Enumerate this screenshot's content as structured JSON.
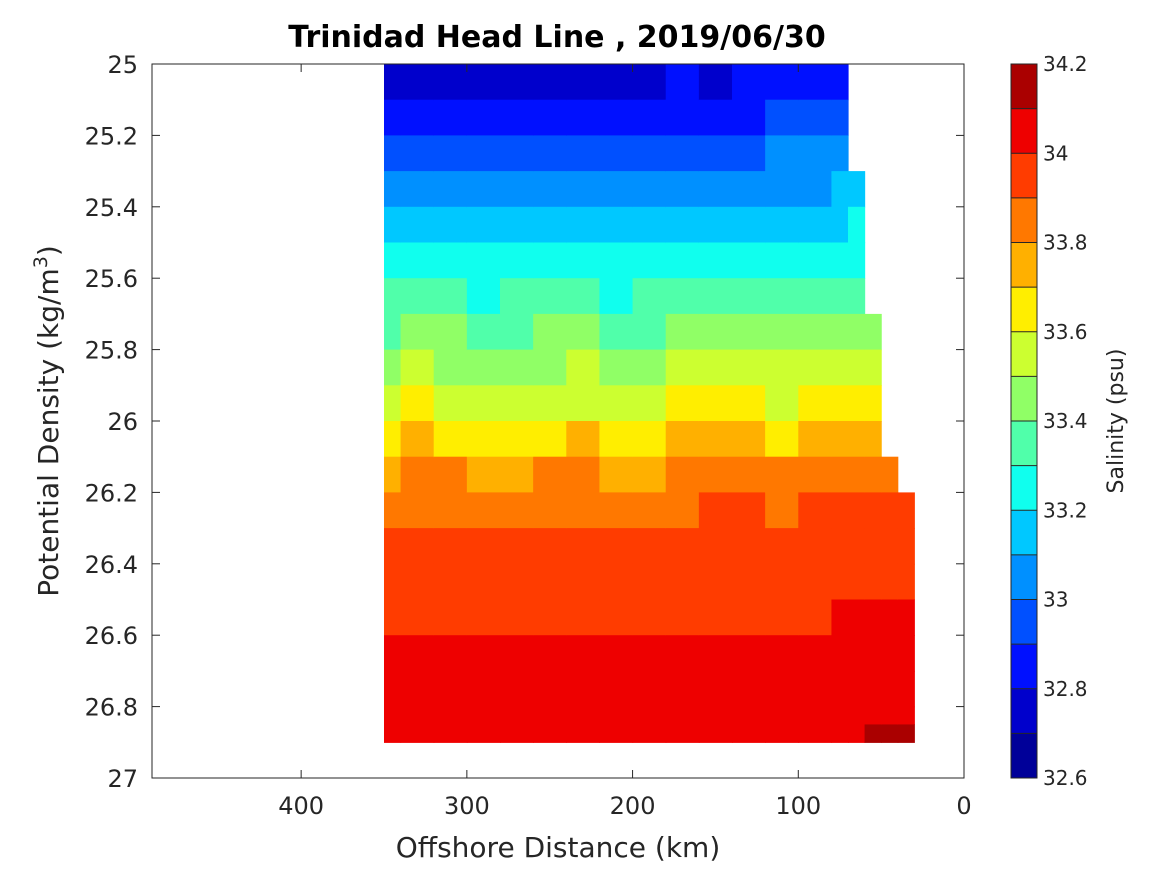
{
  "chart_data": {
    "type": "contour",
    "title": "Trinidad Head Line , 2019/06/30",
    "xlabel": "Offshore Distance (km)",
    "ylabel": "Potential Density (kg/m",
    "ylabel_sup": "3",
    "ylabel_end": ")",
    "xlim": [
      490,
      0
    ],
    "ylim": [
      25,
      27
    ],
    "x_reversed": true,
    "y_reversed": true,
    "x_ticks": [
      400,
      300,
      200,
      100,
      0
    ],
    "y_ticks": [
      25,
      25.2,
      25.4,
      25.6,
      25.8,
      26,
      26.2,
      26.4,
      26.6,
      26.8,
      27
    ],
    "colorbar": {
      "label": "Salinity (psu)",
      "range": [
        32.6,
        34.2
      ],
      "ticks": [
        32.6,
        32.8,
        33,
        33.2,
        33.4,
        33.6,
        33.8,
        34,
        34.2
      ],
      "levels": [
        {
          "min": 32.6,
          "max": 32.7,
          "color": "#000099"
        },
        {
          "min": 32.7,
          "max": 32.8,
          "color": "#0000cc"
        },
        {
          "min": 32.8,
          "max": 32.9,
          "color": "#0010ff"
        },
        {
          "min": 32.9,
          "max": 33.0,
          "color": "#0050ff"
        },
        {
          "min": 33.0,
          "max": 33.1,
          "color": "#0090ff"
        },
        {
          "min": 33.1,
          "max": 33.2,
          "color": "#00c8ff"
        },
        {
          "min": 33.2,
          "max": 33.3,
          "color": "#10ffee"
        },
        {
          "min": 33.3,
          "max": 33.4,
          "color": "#50ffaa"
        },
        {
          "min": 33.4,
          "max": 33.5,
          "color": "#90ff66"
        },
        {
          "min": 33.5,
          "max": 33.6,
          "color": "#ccff30"
        },
        {
          "min": 33.6,
          "max": 33.7,
          "color": "#ffee00"
        },
        {
          "min": 33.7,
          "max": 33.8,
          "color": "#ffb000"
        },
        {
          "min": 33.8,
          "max": 33.9,
          "color": "#ff7800"
        },
        {
          "min": 33.9,
          "max": 34.0,
          "color": "#ff3c00"
        },
        {
          "min": 34.0,
          "max": 34.1,
          "color": "#ee0000"
        },
        {
          "min": 34.1,
          "max": 34.2,
          "color": "#aa0000"
        }
      ]
    },
    "sections": [
      {
        "x": 350,
        "values": [
          32.73,
          32.79,
          32.87,
          32.97,
          33.07,
          33.16,
          33.26,
          33.34,
          33.42,
          33.52,
          33.63,
          33.74,
          33.84,
          33.92,
          33.96,
          33.98,
          34.0,
          34.02,
          34.04,
          34.07,
          34.08
        ]
      },
      {
        "x": 340,
        "values": [
          32.74,
          32.82,
          32.91,
          33.02,
          33.12,
          33.21,
          33.29,
          33.37,
          33.45,
          33.54,
          33.64,
          33.75,
          33.86,
          33.93,
          33.96,
          33.98,
          34.0,
          34.02,
          34.04,
          34.08,
          34.09
        ]
      },
      {
        "x": 320,
        "values": [
          32.76,
          32.85,
          32.94,
          33.04,
          33.13,
          33.22,
          33.3,
          33.38,
          33.47,
          33.56,
          33.66,
          33.76,
          33.87,
          33.93,
          33.96,
          33.98,
          34.0,
          34.02,
          34.05,
          34.09,
          34.09
        ]
      },
      {
        "x": 300,
        "values": [
          32.7,
          32.78,
          32.87,
          32.97,
          33.06,
          33.15,
          33.24,
          33.33,
          33.43,
          33.53,
          33.63,
          33.74,
          33.85,
          33.93,
          33.96,
          33.98,
          34.0,
          34.02,
          34.05,
          34.08,
          34.09
        ]
      },
      {
        "x": 280,
        "values": [
          32.74,
          32.81,
          32.9,
          32.99,
          33.08,
          33.17,
          33.26,
          33.35,
          33.44,
          33.54,
          33.64,
          33.75,
          33.85,
          33.93,
          33.96,
          33.98,
          34.0,
          34.02,
          34.05,
          34.08,
          34.09
        ]
      },
      {
        "x": 260,
        "values": [
          32.71,
          32.79,
          32.88,
          32.98,
          33.07,
          33.16,
          33.25,
          33.34,
          33.44,
          33.54,
          33.64,
          33.74,
          33.85,
          33.92,
          33.96,
          33.98,
          34.0,
          34.02,
          34.04,
          34.07,
          34.09
        ]
      },
      {
        "x": 240,
        "values": [
          32.74,
          32.83,
          32.92,
          33.01,
          33.1,
          33.19,
          33.28,
          33.37,
          33.46,
          33.55,
          33.65,
          33.75,
          33.86,
          33.93,
          33.96,
          33.98,
          34.0,
          34.02,
          34.04,
          34.06,
          34.09
        ]
      },
      {
        "x": 220,
        "values": [
          32.74,
          32.82,
          32.91,
          33.01,
          33.1,
          33.18,
          33.27,
          33.36,
          33.45,
          33.55,
          33.65,
          33.75,
          33.86,
          33.93,
          33.96,
          33.98,
          34.0,
          34.02,
          34.04,
          34.06,
          34.09
        ]
      },
      {
        "x": 200,
        "values": [
          32.69,
          32.77,
          32.86,
          32.95,
          33.04,
          33.13,
          33.22,
          33.32,
          33.42,
          33.52,
          33.62,
          33.73,
          33.84,
          33.92,
          33.96,
          33.98,
          34.0,
          34.02,
          34.04,
          34.06,
          34.09
        ]
      },
      {
        "x": 180,
        "values": [
          32.75,
          32.84,
          32.93,
          33.03,
          33.12,
          33.21,
          33.3,
          33.38,
          33.47,
          33.56,
          33.66,
          33.76,
          33.86,
          33.93,
          33.96,
          33.98,
          34.0,
          34.02,
          34.03,
          34.06,
          34.09
        ]
      },
      {
        "x": 160,
        "values": [
          32.76,
          32.85,
          32.94,
          33.04,
          33.13,
          33.21,
          33.29,
          33.37,
          33.46,
          33.55,
          33.65,
          33.75,
          33.86,
          33.93,
          33.96,
          33.98,
          34.0,
          34.02,
          34.03,
          34.06,
          34.09
        ]
      },
      {
        "x": 140,
        "values": [
          32.74,
          32.83,
          32.92,
          33.02,
          33.11,
          33.2,
          33.28,
          33.37,
          33.46,
          33.56,
          33.66,
          33.76,
          33.87,
          33.94,
          33.97,
          33.99,
          34.01,
          34.03,
          34.03,
          34.06,
          34.09
        ]
      },
      {
        "x": 120,
        "values": [
          32.77,
          32.86,
          32.95,
          33.04,
          33.12,
          33.2,
          33.28,
          33.37,
          33.46,
          33.55,
          33.64,
          33.75,
          33.86,
          33.93,
          33.96,
          33.98,
          34.0,
          34.02,
          34.04,
          34.06,
          34.09
        ]
      },
      {
        "x": 100,
        "values": [
          32.78,
          32.87,
          32.96,
          33.05,
          33.13,
          33.21,
          33.29,
          33.37,
          33.46,
          33.55,
          33.65,
          33.76,
          33.86,
          33.93,
          33.96,
          33.98,
          34.0,
          34.02,
          34.04,
          34.06,
          34.09
        ]
      },
      {
        "x": 80,
        "values": [
          32.8,
          32.89,
          32.97,
          33.06,
          33.14,
          33.22,
          33.3,
          33.38,
          33.47,
          33.56,
          33.66,
          33.77,
          33.87,
          33.94,
          33.97,
          33.99,
          34.01,
          34.03,
          34.05,
          34.07,
          34.09
        ]
      },
      {
        "x": 70,
        "values": [
          32.85,
          32.93,
          33.0,
          33.08,
          33.16,
          33.24,
          33.31,
          33.39,
          33.48,
          33.57,
          33.67,
          33.78,
          33.88,
          33.94,
          33.97,
          33.99,
          34.01,
          34.04,
          34.06,
          34.08,
          34.1
        ]
      },
      {
        "x": 60,
        "values": [
          null,
          null,
          null,
          null,
          33.2,
          33.27,
          33.34,
          33.41,
          33.49,
          33.59,
          33.69,
          33.79,
          33.88,
          33.94,
          33.97,
          33.99,
          34.01,
          34.04,
          34.06,
          34.09,
          34.11
        ]
      },
      {
        "x": 50,
        "values": [
          null,
          null,
          null,
          null,
          null,
          null,
          null,
          null,
          33.52,
          33.63,
          33.73,
          33.81,
          33.89,
          33.94,
          33.97,
          33.99,
          34.01,
          34.04,
          34.06,
          34.09,
          34.11
        ]
      },
      {
        "x": 40,
        "values": [
          null,
          null,
          null,
          null,
          null,
          null,
          null,
          null,
          null,
          null,
          null,
          null,
          33.89,
          33.94,
          33.97,
          33.99,
          34.02,
          34.05,
          34.07,
          34.09,
          34.12
        ]
      },
      {
        "x": 30,
        "values": [
          null,
          null,
          null,
          null,
          null,
          null,
          null,
          null,
          null,
          null,
          null,
          null,
          33.89,
          33.94,
          33.97,
          33.99,
          34.03,
          34.06,
          34.08,
          34.1,
          34.12
        ]
      }
    ],
    "section_density_levels": [
      25.0,
      25.1,
      25.2,
      25.3,
      25.4,
      25.5,
      25.6,
      25.7,
      25.8,
      25.9,
      26.0,
      26.1,
      26.2,
      26.3,
      26.4,
      26.5,
      26.6,
      26.7,
      26.8,
      26.85,
      26.9
    ]
  }
}
